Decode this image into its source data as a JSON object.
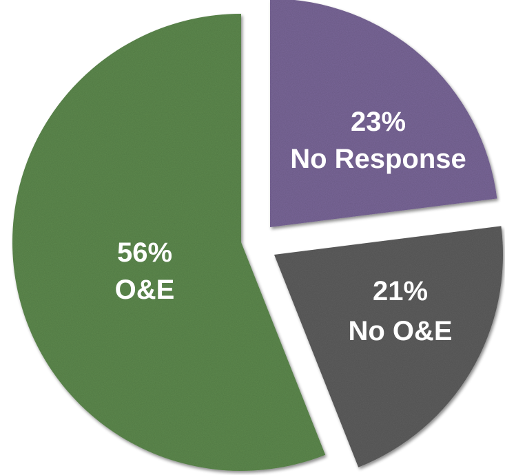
{
  "chart_data": {
    "type": "pie",
    "title": "",
    "slices": [
      {
        "label": "No Response",
        "value": 23,
        "value_label": "23%",
        "color": "#7a6799"
      },
      {
        "label": "No O&E",
        "value": 21,
        "value_label": "21%",
        "color": "#5e5e5e"
      },
      {
        "label": "O&E",
        "value": 56,
        "value_label": "56%",
        "color": "#5e8a4f"
      }
    ],
    "exploded": true,
    "legend": "none",
    "background": "#ffffff"
  }
}
